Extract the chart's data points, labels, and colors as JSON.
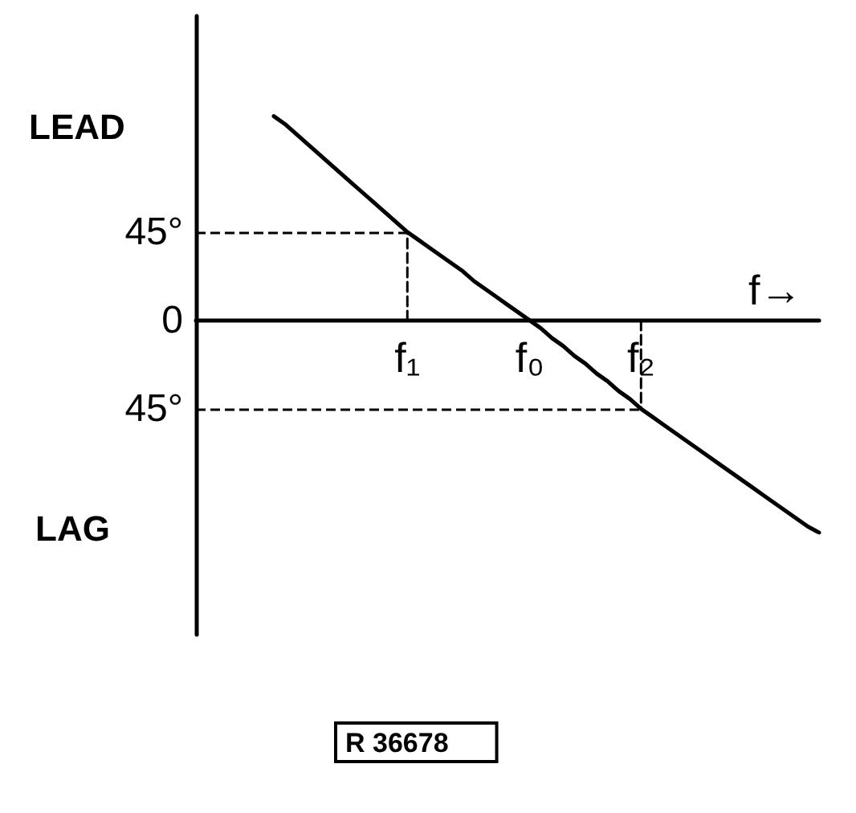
{
  "chart_data": {
    "type": "line",
    "xlabel": "f→",
    "categories": [
      null,
      null,
      null,
      null,
      null,
      null,
      null,
      null,
      null,
      null,
      null,
      null,
      null,
      null,
      null,
      null,
      null,
      null,
      null,
      "f₁",
      null,
      null,
      null,
      null,
      null,
      null,
      null,
      null,
      null,
      null,
      "f₀",
      null,
      null,
      null,
      null,
      null,
      null,
      null,
      null,
      null,
      "f₂",
      null,
      null,
      null,
      null,
      null,
      null,
      null,
      null,
      null,
      null,
      null,
      null,
      null,
      null,
      null,
      null
    ],
    "series": [
      {
        "type": "line",
        "color": "#000000",
        "line_style": "dashed",
        "x": [
          "f₁",
          "f₁"
        ],
        "values": [
          0,
          45
        ]
      },
      {
        "type": "line",
        "color": "#000000",
        "line_style": "dashed",
        "x": [
          "f₂",
          "f₂"
        ],
        "values": [
          0,
          -45
        ]
      },
      {
        "color": "#000000",
        "values": [
          null,
          null,
          null,
          null,
          null,
          null,
          null,
          104,
          100,
          95,
          90,
          85,
          80,
          75,
          70,
          65,
          60,
          55,
          50,
          45,
          41,
          37,
          33,
          29,
          25,
          20,
          16,
          12,
          8,
          4,
          0,
          -4,
          -9,
          -13,
          -18,
          -22,
          -27,
          -31,
          -36,
          -40,
          -45,
          -49,
          -53,
          -57,
          -61,
          -65,
          -69,
          -73,
          -77,
          -81,
          -85,
          -89,
          -93,
          -97,
          -101,
          -105,
          -108
        ]
      }
    ],
    "ylim": [
      -160,
      155
    ],
    "yticks": [
      {
        "value": 45,
        "label": "45°"
      },
      0,
      {
        "value": -45,
        "label": "45°"
      }
    ],
    "ref_lines": [
      {
        "axis": "y",
        "value": 45,
        "line_style": "dashed"
      },
      {
        "axis": "y",
        "value": -45,
        "line_style": "dashed"
      }
    ],
    "annotations": [
      "LEAD",
      "LAG",
      "R 36678"
    ]
  }
}
